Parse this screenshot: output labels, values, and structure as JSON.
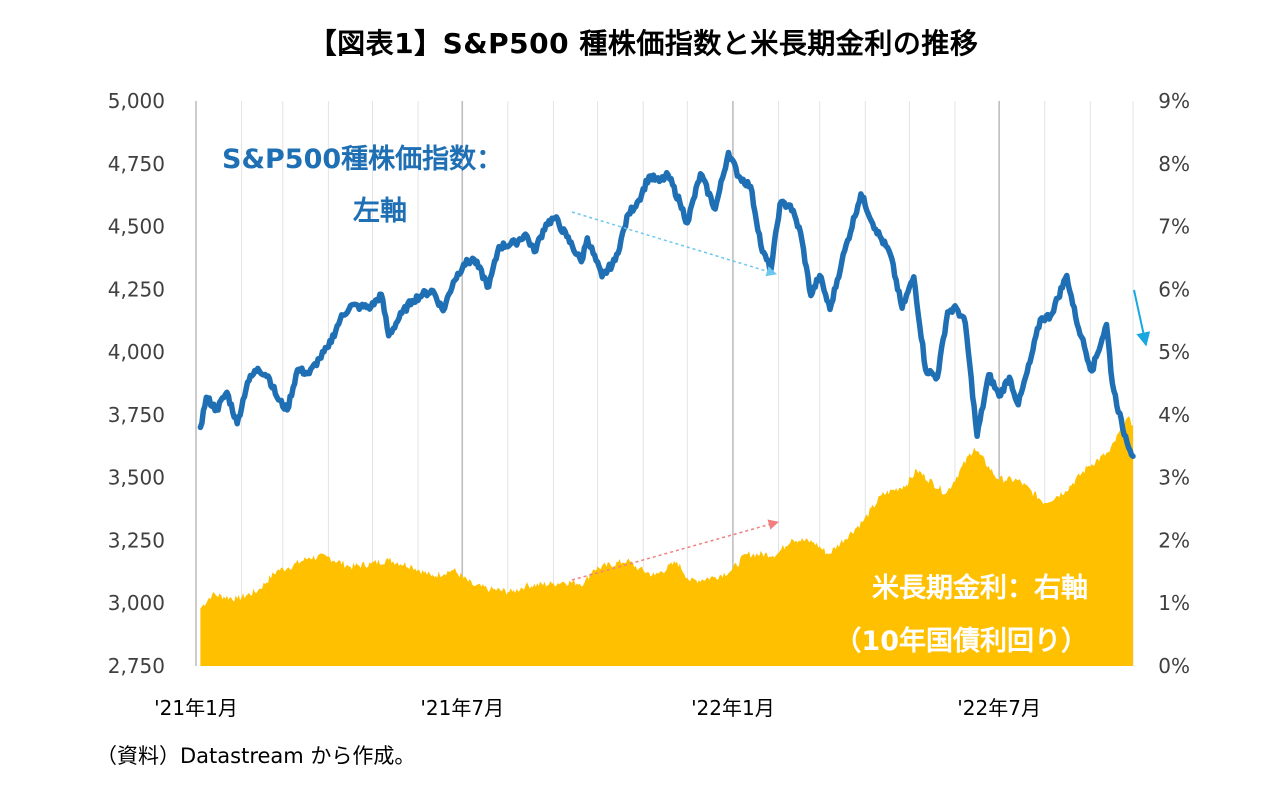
{
  "title": "【図表1】S&P500 種株価指数と米長期金利の推移",
  "source": "（資料）Datastream から作成。",
  "chart_data": {
    "type": "line",
    "title": "【図表1】S&P500 種株価指数と米長期金利の推移",
    "x_range": [
      "2021-01-01",
      "2022-09-30"
    ],
    "x_ticks": [
      "'21年1月",
      "'21年7月",
      "'22年1月",
      "'22年7月"
    ],
    "y_left": {
      "ticks": [
        "5,000",
        "4,750",
        "4,500",
        "4,250",
        "4,000",
        "3,750",
        "3,500",
        "3,250",
        "3,000",
        "2,750"
      ],
      "ylim": [
        2750,
        5000
      ]
    },
    "y_right": {
      "ticks": [
        "9%",
        "8%",
        "7%",
        "6%",
        "5%",
        "4%",
        "3%",
        "2%",
        "1%",
        "0%"
      ],
      "ylim": [
        0,
        9
      ]
    },
    "grid": "vertical-monthly",
    "annotations": {
      "sp_label_line1": "S&P500種株価指数：",
      "sp_label_line2": "左軸",
      "yield_label_line1": "米長期金利：右軸",
      "yield_label_line2": "（10年国債利回り）"
    },
    "series": [
      {
        "name": "S&P500種株価指数",
        "axis": "left",
        "color": "#1f6fb4",
        "style": "line",
        "points": [
          [
            "2021-01-04",
            3700
          ],
          [
            "2021-01-08",
            3820
          ],
          [
            "2021-01-15",
            3770
          ],
          [
            "2021-01-22",
            3840
          ],
          [
            "2021-01-29",
            3715
          ],
          [
            "2021-02-05",
            3880
          ],
          [
            "2021-02-12",
            3935
          ],
          [
            "2021-02-19",
            3905
          ],
          [
            "2021-02-26",
            3810
          ],
          [
            "2021-03-04",
            3770
          ],
          [
            "2021-03-11",
            3930
          ],
          [
            "2021-03-19",
            3915
          ],
          [
            "2021-03-26",
            3975
          ],
          [
            "2021-04-01",
            4020
          ],
          [
            "2021-04-09",
            4130
          ],
          [
            "2021-04-16",
            4185
          ],
          [
            "2021-04-23",
            4180
          ],
          [
            "2021-04-30",
            4180
          ],
          [
            "2021-05-07",
            4230
          ],
          [
            "2021-05-12",
            4065
          ],
          [
            "2021-05-21",
            4155
          ],
          [
            "2021-05-28",
            4205
          ],
          [
            "2021-06-04",
            4230
          ],
          [
            "2021-06-11",
            4245
          ],
          [
            "2021-06-18",
            4165
          ],
          [
            "2021-06-25",
            4280
          ],
          [
            "2021-07-02",
            4350
          ],
          [
            "2021-07-09",
            4370
          ],
          [
            "2021-07-19",
            4260
          ],
          [
            "2021-07-26",
            4420
          ],
          [
            "2021-08-06",
            4435
          ],
          [
            "2021-08-13",
            4470
          ],
          [
            "2021-08-19",
            4400
          ],
          [
            "2021-08-27",
            4510
          ],
          [
            "2021-09-02",
            4535
          ],
          [
            "2021-09-10",
            4460
          ],
          [
            "2021-09-20",
            4360
          ],
          [
            "2021-09-24",
            4455
          ],
          [
            "2021-10-04",
            4300
          ],
          [
            "2021-10-13",
            4365
          ],
          [
            "2021-10-22",
            4550
          ],
          [
            "2021-10-29",
            4605
          ],
          [
            "2021-11-05",
            4700
          ],
          [
            "2021-11-12",
            4680
          ],
          [
            "2021-11-18",
            4705
          ],
          [
            "2021-11-26",
            4595
          ],
          [
            "2021-12-01",
            4515
          ],
          [
            "2021-12-10",
            4710
          ],
          [
            "2021-12-20",
            4570
          ],
          [
            "2021-12-29",
            4795
          ],
          [
            "2022-01-05",
            4700
          ],
          [
            "2022-01-13",
            4660
          ],
          [
            "2022-01-21",
            4400
          ],
          [
            "2022-01-27",
            4330
          ],
          [
            "2022-02-02",
            4590
          ],
          [
            "2022-02-09",
            4585
          ],
          [
            "2022-02-16",
            4475
          ],
          [
            "2022-02-23",
            4225
          ],
          [
            "2022-03-01",
            4305
          ],
          [
            "2022-03-08",
            4170
          ],
          [
            "2022-03-16",
            4360
          ],
          [
            "2022-03-29",
            4630
          ],
          [
            "2022-04-08",
            4490
          ],
          [
            "2022-04-18",
            4390
          ],
          [
            "2022-04-26",
            4175
          ],
          [
            "2022-05-04",
            4300
          ],
          [
            "2022-05-12",
            3930
          ],
          [
            "2022-05-20",
            3900
          ],
          [
            "2022-05-27",
            4160
          ],
          [
            "2022-06-02",
            4175
          ],
          [
            "2022-06-08",
            4115
          ],
          [
            "2022-06-16",
            3665
          ],
          [
            "2022-06-24",
            3910
          ],
          [
            "2022-07-01",
            3825
          ],
          [
            "2022-07-08",
            3900
          ],
          [
            "2022-07-14",
            3790
          ],
          [
            "2022-07-22",
            3960
          ],
          [
            "2022-07-29",
            4130
          ],
          [
            "2022-08-05",
            4145
          ],
          [
            "2022-08-16",
            4305
          ],
          [
            "2022-08-22",
            4140
          ],
          [
            "2022-08-26",
            4060
          ],
          [
            "2022-09-02",
            3925
          ],
          [
            "2022-09-12",
            4110
          ],
          [
            "2022-09-16",
            3875
          ],
          [
            "2022-09-23",
            3695
          ],
          [
            "2022-09-30",
            3585
          ]
        ]
      },
      {
        "name": "米長期金利（10年国債利回り）",
        "axis": "right",
        "color": "#ffc000",
        "style": "area",
        "points": [
          [
            "2021-01-04",
            0.92
          ],
          [
            "2021-01-12",
            1.14
          ],
          [
            "2021-01-29",
            1.07
          ],
          [
            "2021-02-12",
            1.2
          ],
          [
            "2021-02-25",
            1.52
          ],
          [
            "2021-03-05",
            1.57
          ],
          [
            "2021-03-19",
            1.73
          ],
          [
            "2021-03-31",
            1.74
          ],
          [
            "2021-04-16",
            1.58
          ],
          [
            "2021-04-30",
            1.63
          ],
          [
            "2021-05-12",
            1.69
          ],
          [
            "2021-05-28",
            1.59
          ],
          [
            "2021-06-10",
            1.43
          ],
          [
            "2021-06-25",
            1.53
          ],
          [
            "2021-07-08",
            1.29
          ],
          [
            "2021-07-20",
            1.22
          ],
          [
            "2021-08-04",
            1.18
          ],
          [
            "2021-08-13",
            1.28
          ],
          [
            "2021-08-31",
            1.31
          ],
          [
            "2021-09-08",
            1.34
          ],
          [
            "2021-09-22",
            1.32
          ],
          [
            "2021-09-28",
            1.54
          ],
          [
            "2021-10-21",
            1.68
          ],
          [
            "2021-10-29",
            1.55
          ],
          [
            "2021-11-09",
            1.44
          ],
          [
            "2021-11-24",
            1.66
          ],
          [
            "2021-12-03",
            1.35
          ],
          [
            "2021-12-20",
            1.42
          ],
          [
            "2021-12-31",
            1.52
          ],
          [
            "2022-01-10",
            1.78
          ],
          [
            "2022-01-31",
            1.78
          ],
          [
            "2022-02-10",
            2.03
          ],
          [
            "2022-02-25",
            1.97
          ],
          [
            "2022-03-07",
            1.78
          ],
          [
            "2022-03-31",
            2.32
          ],
          [
            "2022-04-12",
            2.72
          ],
          [
            "2022-04-29",
            2.89
          ],
          [
            "2022-05-06",
            3.12
          ],
          [
            "2022-05-26",
            2.75
          ],
          [
            "2022-06-14",
            3.48
          ],
          [
            "2022-06-30",
            2.98
          ],
          [
            "2022-07-14",
            2.96
          ],
          [
            "2022-08-01",
            2.6
          ],
          [
            "2022-08-15",
            2.79
          ],
          [
            "2022-08-31",
            3.19
          ],
          [
            "2022-09-14",
            3.41
          ],
          [
            "2022-09-26",
            3.95
          ],
          [
            "2022-09-30",
            3.83
          ]
        ]
      }
    ]
  }
}
